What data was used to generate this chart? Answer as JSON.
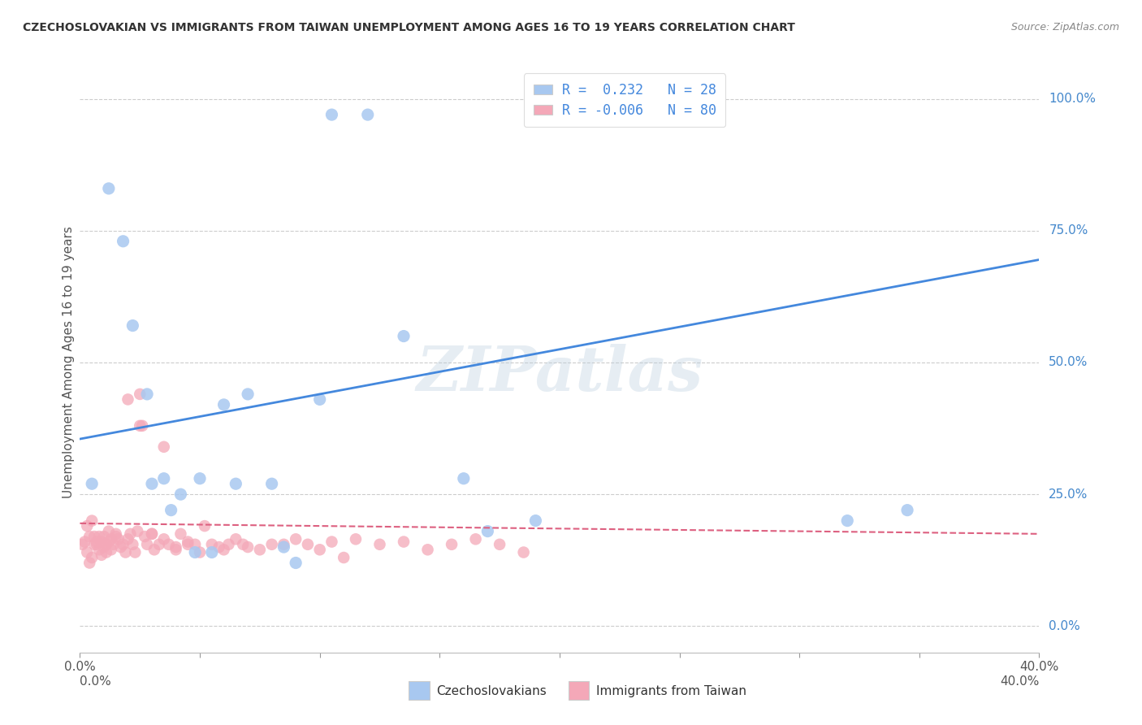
{
  "title": "CZECHOSLOVAKIAN VS IMMIGRANTS FROM TAIWAN UNEMPLOYMENT AMONG AGES 16 TO 19 YEARS CORRELATION CHART",
  "source": "Source: ZipAtlas.com",
  "ylabel": "Unemployment Among Ages 16 to 19 years",
  "xlim": [
    0,
    0.4
  ],
  "ylim": [
    -0.05,
    1.05
  ],
  "yticks_right": [
    0.0,
    0.25,
    0.5,
    0.75,
    1.0
  ],
  "ytick_labels_right": [
    "0.0%",
    "25.0%",
    "50.0%",
    "75.0%",
    "100.0%"
  ],
  "blue_R": 0.232,
  "blue_N": 28,
  "pink_R": -0.006,
  "pink_N": 80,
  "legend_label_blue": "Czechoslovakians",
  "legend_label_pink": "Immigrants from Taiwan",
  "blue_color": "#A8C8F0",
  "pink_color": "#F4A8B8",
  "blue_line_color": "#4488DD",
  "pink_line_color": "#DD6080",
  "watermark": "ZIPatlas",
  "blue_dots_x": [
    0.005,
    0.012,
    0.018,
    0.022,
    0.028,
    0.03,
    0.035,
    0.038,
    0.042,
    0.048,
    0.05,
    0.055,
    0.06,
    0.065,
    0.07,
    0.08,
    0.085,
    0.09,
    0.1,
    0.105,
    0.12,
    0.135,
    0.19,
    0.195,
    0.32,
    0.345,
    0.16,
    0.17
  ],
  "blue_dots_y": [
    0.27,
    0.83,
    0.73,
    0.57,
    0.44,
    0.27,
    0.28,
    0.22,
    0.25,
    0.14,
    0.28,
    0.14,
    0.42,
    0.27,
    0.44,
    0.27,
    0.15,
    0.12,
    0.43,
    0.97,
    0.97,
    0.55,
    0.2,
    0.97,
    0.2,
    0.22,
    0.28,
    0.18
  ],
  "pink_dots_x": [
    0.001,
    0.002,
    0.003,
    0.003,
    0.004,
    0.004,
    0.005,
    0.005,
    0.006,
    0.006,
    0.007,
    0.007,
    0.008,
    0.008,
    0.009,
    0.009,
    0.01,
    0.01,
    0.011,
    0.011,
    0.012,
    0.012,
    0.013,
    0.013,
    0.014,
    0.015,
    0.015,
    0.016,
    0.017,
    0.018,
    0.019,
    0.02,
    0.021,
    0.022,
    0.023,
    0.024,
    0.025,
    0.026,
    0.027,
    0.028,
    0.03,
    0.031,
    0.033,
    0.035,
    0.037,
    0.04,
    0.042,
    0.045,
    0.048,
    0.05,
    0.052,
    0.055,
    0.058,
    0.06,
    0.062,
    0.065,
    0.068,
    0.07,
    0.075,
    0.08,
    0.085,
    0.09,
    0.095,
    0.1,
    0.105,
    0.11,
    0.115,
    0.125,
    0.135,
    0.145,
    0.155,
    0.165,
    0.175,
    0.185,
    0.02,
    0.025,
    0.03,
    0.035,
    0.04,
    0.045
  ],
  "pink_dots_y": [
    0.155,
    0.16,
    0.14,
    0.19,
    0.12,
    0.17,
    0.13,
    0.2,
    0.155,
    0.17,
    0.155,
    0.16,
    0.145,
    0.17,
    0.135,
    0.16,
    0.15,
    0.17,
    0.14,
    0.155,
    0.16,
    0.18,
    0.145,
    0.165,
    0.155,
    0.17,
    0.175,
    0.165,
    0.15,
    0.155,
    0.14,
    0.165,
    0.175,
    0.155,
    0.14,
    0.18,
    0.38,
    0.38,
    0.17,
    0.155,
    0.175,
    0.145,
    0.155,
    0.34,
    0.155,
    0.145,
    0.175,
    0.16,
    0.155,
    0.14,
    0.19,
    0.155,
    0.15,
    0.145,
    0.155,
    0.165,
    0.155,
    0.15,
    0.145,
    0.155,
    0.155,
    0.165,
    0.155,
    0.145,
    0.16,
    0.13,
    0.165,
    0.155,
    0.16,
    0.145,
    0.155,
    0.165,
    0.155,
    0.14,
    0.43,
    0.44,
    0.175,
    0.165,
    0.15,
    0.155
  ],
  "blue_trend_x": [
    0.0,
    0.4
  ],
  "blue_trend_y": [
    0.355,
    0.695
  ],
  "pink_trend_x": [
    0.0,
    0.4
  ],
  "pink_trend_y": [
    0.195,
    0.175
  ]
}
